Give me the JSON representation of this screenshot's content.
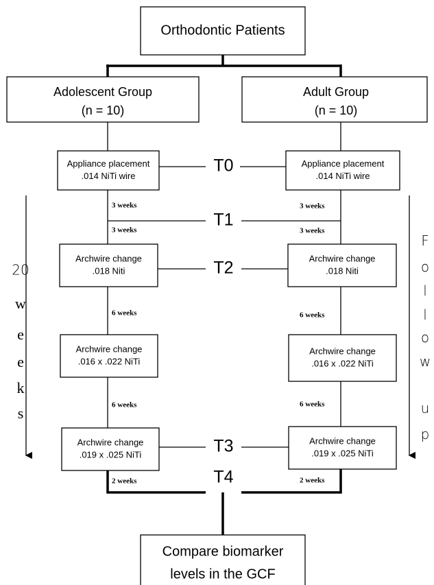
{
  "root": "Orthodontic Patients",
  "groups": [
    {
      "name": "Adolescent Group",
      "n": "(n = 10)"
    },
    {
      "name": "Adult Group",
      "n": "(n = 10)"
    }
  ],
  "steps": {
    "left": [
      [
        "Appliance placement",
        ".014 NiTi wire"
      ],
      [
        "Archwire change",
        ".018 Niti"
      ],
      [
        "Archwire change",
        ".016 x .022 NiTi"
      ],
      [
        "Archwire change",
        ".019 x .025 NiTi"
      ]
    ],
    "right": [
      [
        "Appliance placement",
        ".014 NiTi wire"
      ],
      [
        "Archwire change",
        ".018 Niti"
      ],
      [
        "Archwire change",
        ".016 x .022 NiTi"
      ],
      [
        "Archwire change",
        ".019 x .025 NiTi"
      ]
    ]
  },
  "timepoints": [
    "T0",
    "T1",
    "T2",
    "T3",
    "T4"
  ],
  "intervals": {
    "left": [
      "3 weeks",
      "3 weeks",
      "6 weeks",
      "6 weeks",
      "2 weeks"
    ],
    "right": [
      "3 weeks",
      "3 weeks",
      "6 weeks",
      "6 weeks",
      "2 weeks"
    ]
  },
  "side_labels": {
    "left": [
      "20",
      "weeks"
    ],
    "right": [
      "Follow",
      "up"
    ]
  },
  "outcome": [
    "Compare biomarker",
    "levels in the GCF"
  ]
}
